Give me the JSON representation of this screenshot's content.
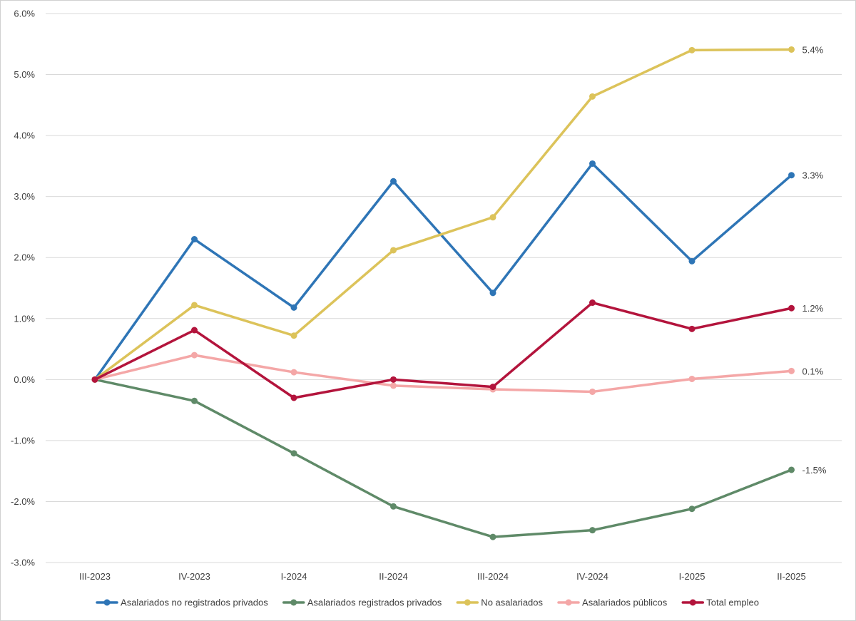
{
  "chart_data": {
    "type": "line",
    "categories": [
      "III-2023",
      "IV-2023",
      "I-2024",
      "II-2024",
      "III-2024",
      "IV-2024",
      "I-2025",
      "II-2025"
    ],
    "ylim": [
      -0.03,
      0.06
    ],
    "yticks": [
      0.06,
      0.05,
      0.04,
      0.03,
      0.02,
      0.01,
      0.0,
      -0.01,
      -0.02,
      -0.03
    ],
    "ytick_labels": [
      "6.0%",
      "5.0%",
      "4.0%",
      "3.0%",
      "2.0%",
      "1.0%",
      "0.0%",
      "-1.0%",
      "-2.0%",
      "-3.0%"
    ],
    "grid": true,
    "legend_position": "bottom",
    "title": "",
    "xlabel": "",
    "ylabel": "",
    "series": [
      {
        "name": "Asalariados no registrados privados",
        "color": "#2e75b6",
        "values": [
          0.0,
          0.023,
          0.0118,
          0.0325,
          0.0142,
          0.0354,
          0.0194,
          0.0335
        ],
        "end_label": "3.3%"
      },
      {
        "name": "Asalariados registrados privados",
        "color": "#5f8a68",
        "values": [
          0.0,
          -0.0035,
          -0.0121,
          -0.0208,
          -0.0258,
          -0.0247,
          -0.0212,
          -0.0148
        ],
        "end_label": "-1.5%"
      },
      {
        "name": "No asalariados",
        "color": "#dcc35a",
        "values": [
          0.0,
          0.0122,
          0.0072,
          0.0212,
          0.0266,
          0.0464,
          0.054,
          0.0541
        ],
        "end_label": "5.4%"
      },
      {
        "name": "Asalariados públicos",
        "color": "#f4a7a7",
        "values": [
          0.0,
          0.004,
          0.0012,
          -0.001,
          -0.0016,
          -0.002,
          0.0001,
          0.0014
        ],
        "end_label": "0.1%"
      },
      {
        "name": "Total empleo",
        "color": "#b3143c",
        "values": [
          0.0,
          0.0081,
          -0.003,
          0.0,
          -0.0012,
          0.0126,
          0.0083,
          0.0117
        ],
        "end_label": "1.2%"
      }
    ]
  }
}
